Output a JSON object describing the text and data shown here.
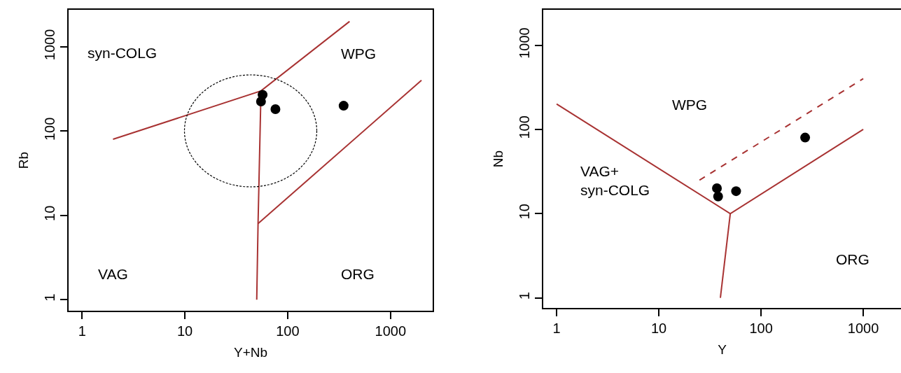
{
  "chart_data": [
    {
      "type": "scatter",
      "xlabel": "Y+Nb",
      "ylabel": "Rb",
      "log": "xy",
      "grid": false,
      "xlim": [
        0.74,
        2570
      ],
      "ylim": [
        0.74,
        2750
      ],
      "xticks": [
        1,
        10,
        100,
        1000
      ],
      "yticks": [
        1,
        10,
        100,
        1000
      ],
      "series": [
        {
          "type": "line",
          "color": "#a83232",
          "line_style": "solid",
          "x": [
            2,
            55,
            400
          ],
          "values": [
            80,
            300,
            2000
          ]
        },
        {
          "type": "line",
          "color": "#a83232",
          "line_style": "solid",
          "x": [
            55,
            51.5,
            50
          ],
          "values": [
            300,
            8,
            1
          ]
        },
        {
          "type": "line",
          "color": "#a83232",
          "line_style": "solid",
          "x": [
            51.5,
            2000
          ],
          "values": [
            8,
            400
          ]
        },
        {
          "type": "scatter",
          "color": "#000000",
          "marker": "circle",
          "x": [
            57,
            55,
            76,
            350
          ],
          "values": [
            270,
            225,
            182,
            200
          ]
        }
      ],
      "annotations": [
        "syn-COLG",
        "WPG",
        "VAG",
        "ORG"
      ]
    },
    {
      "type": "scatter",
      "xlabel": "Y",
      "ylabel": "Nb",
      "log": "xy",
      "grid": false,
      "xlim": [
        0.74,
        2340
      ],
      "ylim": [
        0.76,
        2630
      ],
      "xticks": [
        1,
        10,
        100,
        1000
      ],
      "yticks": [
        1,
        10,
        100,
        1000
      ],
      "series": [
        {
          "type": "line",
          "color": "#a83232",
          "line_style": "solid",
          "x": [
            1,
            50,
            1000
          ],
          "values": [
            200,
            10,
            100
          ]
        },
        {
          "type": "line",
          "color": "#a83232",
          "line_style": "solid",
          "x": [
            50,
            40
          ],
          "values": [
            10,
            1
          ]
        },
        {
          "type": "line",
          "color": "#a83232",
          "line_style": "dashed",
          "x": [
            25,
            1000
          ],
          "values": [
            25,
            400
          ]
        },
        {
          "type": "scatter",
          "color": "#000000",
          "marker": "circle",
          "x": [
            37,
            38,
            57,
            270
          ],
          "values": [
            20,
            16,
            18.5,
            80
          ]
        }
      ],
      "annotations": [
        "WPG",
        "VAG+\nsyn-COLG",
        "ORG"
      ]
    }
  ]
}
